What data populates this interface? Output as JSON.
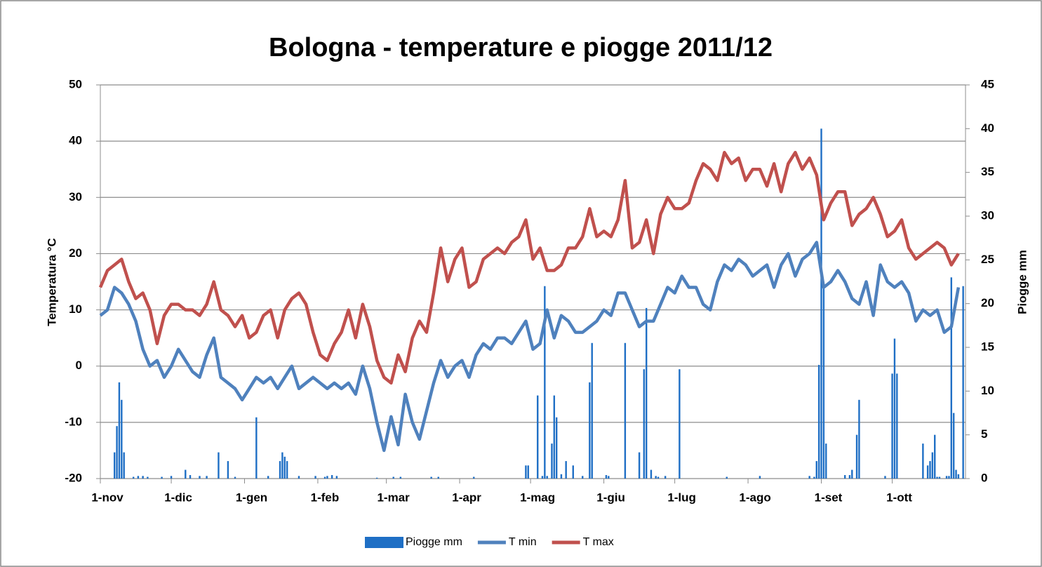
{
  "chart_data": {
    "type": "line",
    "title": "Bologna - temperature e piogge 2011/12",
    "ylabel": "Temperatura °C",
    "y2label": "Piogge mm",
    "xlim": [
      0,
      366
    ],
    "xticks": [
      {
        "value": 0,
        "label": "1-nov"
      },
      {
        "value": 30,
        "label": "1-dic"
      },
      {
        "value": 61,
        "label": "1-gen"
      },
      {
        "value": 92,
        "label": "1-feb"
      },
      {
        "value": 121,
        "label": "1-mar"
      },
      {
        "value": 152,
        "label": "1-apr"
      },
      {
        "value": 182,
        "label": "1-mag"
      },
      {
        "value": 213,
        "label": "1-giu"
      },
      {
        "value": 243,
        "label": "1-lug"
      },
      {
        "value": 274,
        "label": "1-ago"
      },
      {
        "value": 305,
        "label": "1-set"
      },
      {
        "value": 335,
        "label": "1-ott"
      }
    ],
    "ylim": [
      -20,
      50
    ],
    "yticks": [
      -20,
      -10,
      0,
      10,
      20,
      30,
      40,
      50
    ],
    "y2lim": [
      0,
      45
    ],
    "y2ticks": [
      0,
      5,
      10,
      15,
      20,
      25,
      30,
      35,
      40,
      45
    ],
    "grid": true,
    "legend": "bottom",
    "series": [
      {
        "name": "Piogge mm",
        "type": "bar",
        "axis": "y2",
        "color": "#1f6fc5",
        "x": [
          6,
          7,
          8,
          9,
          10,
          14,
          16,
          18,
          20,
          26,
          30,
          36,
          38,
          42,
          45,
          50,
          54,
          57,
          66,
          71,
          76,
          77,
          78,
          79,
          84,
          91,
          95,
          96,
          98,
          100,
          117,
          124,
          127,
          140,
          143,
          158,
          180,
          181,
          185,
          187,
          188,
          189,
          191,
          192,
          193,
          195,
          197,
          200,
          204,
          207,
          208,
          214,
          215,
          222,
          228,
          230,
          231,
          233,
          235,
          236,
          239,
          245,
          265,
          279,
          300,
          302,
          303,
          304,
          305,
          306,
          307,
          315,
          317,
          318,
          320,
          321,
          332,
          335,
          336,
          337,
          348,
          350,
          351,
          352,
          353,
          354,
          355,
          358,
          359,
          360,
          361,
          362,
          363,
          365
        ],
        "values": [
          3,
          6,
          11,
          9,
          3,
          0.2,
          0.3,
          0.3,
          0.2,
          0.2,
          0.3,
          1,
          0.4,
          0.3,
          0.3,
          3,
          2,
          0.2,
          7,
          0.3,
          2,
          3,
          2.5,
          2,
          0.3,
          0.3,
          0.2,
          0.3,
          0.4,
          0.3,
          0.1,
          0.2,
          0.2,
          0.2,
          0.2,
          0.2,
          1.5,
          1.5,
          9.5,
          0.3,
          22,
          0.3,
          4,
          9.5,
          7,
          0.5,
          2,
          1.5,
          0.3,
          11,
          15.5,
          0.4,
          0.3,
          15.5,
          3,
          12.5,
          19.5,
          1,
          0.3,
          0.2,
          0.3,
          12.5,
          0.2,
          0.3,
          0.3,
          0.2,
          2,
          13,
          40,
          22,
          4,
          0.4,
          0.4,
          1,
          5,
          9,
          0.3,
          12,
          16,
          12,
          4,
          1.5,
          2,
          3,
          5,
          0.2,
          0.2,
          0.3,
          0.3,
          23,
          7.5,
          1,
          0.5,
          22
        ]
      },
      {
        "name": "T min",
        "type": "line",
        "color": "#4f81bd",
        "x": [
          0,
          3,
          6,
          9,
          12,
          15,
          18,
          21,
          24,
          27,
          30,
          33,
          36,
          39,
          42,
          45,
          48,
          51,
          54,
          57,
          60,
          63,
          66,
          69,
          72,
          75,
          78,
          81,
          84,
          87,
          90,
          93,
          96,
          99,
          102,
          105,
          108,
          111,
          114,
          117,
          120,
          123,
          126,
          129,
          132,
          135,
          138,
          141,
          144,
          147,
          150,
          153,
          156,
          159,
          162,
          165,
          168,
          171,
          174,
          177,
          180,
          183,
          186,
          189,
          192,
          195,
          198,
          201,
          204,
          207,
          210,
          213,
          216,
          219,
          222,
          225,
          228,
          231,
          234,
          237,
          240,
          243,
          246,
          249,
          252,
          255,
          258,
          261,
          264,
          267,
          270,
          273,
          276,
          279,
          282,
          285,
          288,
          291,
          294,
          297,
          300,
          303,
          306,
          309,
          312,
          315,
          318,
          321,
          324,
          327,
          330,
          333,
          336,
          339,
          342,
          345,
          348,
          351,
          354,
          357,
          360,
          363
        ],
        "values": [
          9,
          10,
          14,
          13,
          11,
          8,
          3,
          0,
          1,
          -2,
          0,
          3,
          1,
          -1,
          -2,
          2,
          5,
          -2,
          -3,
          -4,
          -6,
          -4,
          -2,
          -3,
          -2,
          -4,
          -2,
          0,
          -4,
          -3,
          -2,
          -3,
          -4,
          -3,
          -4,
          -3,
          -5,
          0,
          -4,
          -10,
          -15,
          -9,
          -14,
          -5,
          -10,
          -13,
          -8,
          -3,
          1,
          -2,
          0,
          1,
          -2,
          2,
          4,
          3,
          5,
          5,
          4,
          6,
          8,
          3,
          4,
          10,
          5,
          9,
          8,
          6,
          6,
          7,
          8,
          10,
          9,
          13,
          13,
          10,
          7,
          8,
          8,
          11,
          14,
          13,
          16,
          14,
          14,
          11,
          10,
          15,
          18,
          17,
          19,
          18,
          16,
          17,
          18,
          14,
          18,
          20,
          16,
          19,
          20,
          22,
          14,
          15,
          17,
          15,
          12,
          11,
          15,
          9,
          18,
          15,
          14,
          15,
          13,
          8,
          10,
          9,
          10,
          6,
          7,
          14
        ]
      },
      {
        "name": "T max",
        "type": "line",
        "color": "#c0504d",
        "x": [
          0,
          3,
          6,
          9,
          12,
          15,
          18,
          21,
          24,
          27,
          30,
          33,
          36,
          39,
          42,
          45,
          48,
          51,
          54,
          57,
          60,
          63,
          66,
          69,
          72,
          75,
          78,
          81,
          84,
          87,
          90,
          93,
          96,
          99,
          102,
          105,
          108,
          111,
          114,
          117,
          120,
          123,
          126,
          129,
          132,
          135,
          138,
          141,
          144,
          147,
          150,
          153,
          156,
          159,
          162,
          165,
          168,
          171,
          174,
          177,
          180,
          183,
          186,
          189,
          192,
          195,
          198,
          201,
          204,
          207,
          210,
          213,
          216,
          219,
          222,
          225,
          228,
          231,
          234,
          237,
          240,
          243,
          246,
          249,
          252,
          255,
          258,
          261,
          264,
          267,
          270,
          273,
          276,
          279,
          282,
          285,
          288,
          291,
          294,
          297,
          300,
          303,
          306,
          309,
          312,
          315,
          318,
          321,
          324,
          327,
          330,
          333,
          336,
          339,
          342,
          345,
          348,
          351,
          354,
          357,
          360,
          363
        ],
        "values": [
          14,
          17,
          18,
          19,
          15,
          12,
          13,
          10,
          4,
          9,
          11,
          11,
          10,
          10,
          9,
          11,
          15,
          10,
          9,
          7,
          9,
          5,
          6,
          9,
          10,
          5,
          10,
          12,
          13,
          11,
          6,
          2,
          1,
          4,
          6,
          10,
          5,
          11,
          7,
          1,
          -2,
          -3,
          2,
          -1,
          5,
          8,
          6,
          13,
          21,
          15,
          19,
          21,
          14,
          15,
          19,
          20,
          21,
          20,
          22,
          23,
          26,
          19,
          21,
          17,
          17,
          18,
          21,
          21,
          23,
          28,
          23,
          24,
          23,
          26,
          33,
          21,
          22,
          26,
          20,
          27,
          30,
          28,
          28,
          29,
          33,
          36,
          35,
          33,
          38,
          36,
          37,
          33,
          35,
          35,
          32,
          36,
          31,
          36,
          38,
          35,
          37,
          34,
          26,
          29,
          31,
          31,
          25,
          27,
          28,
          30,
          27,
          23,
          24,
          26,
          21,
          19,
          20,
          21,
          22,
          21,
          18,
          20
        ]
      }
    ]
  }
}
